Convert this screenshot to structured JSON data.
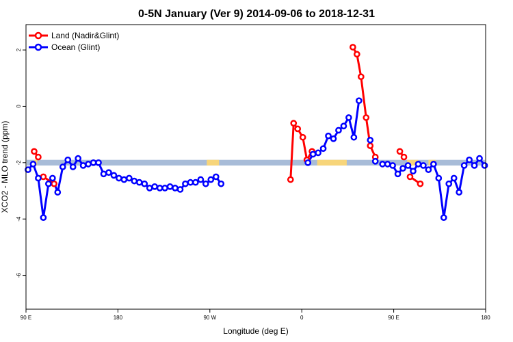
{
  "chart_data": {
    "type": "line",
    "title": "0-5N January (Ver 9)   2014-09-06 to 2018-12-31",
    "xlabel": "Longitude (deg E)",
    "ylabel": "XCO2 - MLO trend (ppm)",
    "xlim": [
      90,
      540
    ],
    "ylim": [
      -7.2,
      2.9
    ],
    "x_ticks": [
      {
        "value": 90,
        "label": "90 E"
      },
      {
        "value": 180,
        "label": "180"
      },
      {
        "value": 270,
        "label": "90 W"
      },
      {
        "value": 360,
        "label": "0"
      },
      {
        "value": 450,
        "label": "90 E"
      },
      {
        "value": 540,
        "label": "180"
      }
    ],
    "y_ticks": [
      {
        "value": 2,
        "label": "2"
      },
      {
        "value": 0,
        "label": "0"
      },
      {
        "value": -2,
        "label": "-2"
      },
      {
        "value": -4,
        "label": "-4"
      },
      {
        "value": -6,
        "label": "-6"
      }
    ],
    "legend_position": "top-left",
    "band": {
      "y_from": -2.1,
      "y_to": -1.9,
      "ocean_color": "#a8bcd8",
      "land_color": "#f7d57a",
      "land_ranges": [
        [
          98,
          101
        ],
        [
          267,
          279
        ],
        [
          375,
          404
        ],
        [
          463,
          474
        ],
        [
          484,
          491
        ]
      ]
    },
    "series": [
      {
        "name": "Land (Nadir&Glint)",
        "color": "#ff0000",
        "segments": [
          [
            [
              98,
              -1.6
            ],
            [
              102,
              -1.8
            ]
          ],
          [
            [
              107,
              -2.5
            ],
            [
              117.5,
              -2.75
            ]
          ],
          [
            [
              349,
              -2.6
            ],
            [
              352,
              -0.6
            ],
            [
              356,
              -0.8
            ],
            [
              361,
              -1.1
            ],
            [
              365,
              -1.9
            ],
            [
              370,
              -1.6
            ]
          ],
          [
            [
              410,
              2.1
            ],
            [
              414,
              1.85
            ],
            [
              418,
              1.05
            ],
            [
              423,
              -0.4
            ],
            [
              427,
              -1.4
            ],
            [
              432,
              -1.8
            ]
          ],
          [
            [
              456,
              -1.6
            ],
            [
              460,
              -1.8
            ]
          ],
          [
            [
              466,
              -2.5
            ],
            [
              476,
              -2.75
            ]
          ]
        ]
      },
      {
        "name": "Ocean (Glint)",
        "color": "#0000ff",
        "points": [
          [
            92,
            -2.25
          ],
          [
            97,
            -2.05
          ],
          [
            102,
            -2.55
          ],
          [
            107,
            -3.95
          ],
          [
            112,
            -2.75
          ],
          [
            116,
            -2.55
          ],
          [
            121,
            -3.05
          ],
          [
            126,
            -2.15
          ],
          [
            131,
            -1.9
          ],
          [
            136,
            -2.15
          ],
          [
            141,
            -1.85
          ],
          [
            146,
            -2.1
          ],
          [
            151,
            -2.05
          ],
          [
            156,
            -2.0
          ],
          [
            161,
            -2.0
          ],
          [
            166,
            -2.4
          ],
          [
            171,
            -2.35
          ],
          [
            176,
            -2.45
          ],
          [
            181,
            -2.55
          ],
          [
            186,
            -2.6
          ],
          [
            191,
            -2.55
          ],
          [
            196,
            -2.65
          ],
          [
            201,
            -2.7
          ],
          [
            206,
            -2.75
          ],
          [
            211,
            -2.9
          ],
          [
            216,
            -2.85
          ],
          [
            221,
            -2.9
          ],
          [
            226,
            -2.9
          ],
          [
            231,
            -2.85
          ],
          [
            236,
            -2.9
          ],
          [
            241,
            -2.95
          ],
          [
            246,
            -2.75
          ],
          [
            251,
            -2.7
          ],
          [
            256,
            -2.7
          ],
          [
            261,
            -2.6
          ],
          [
            266,
            -2.75
          ],
          [
            271,
            -2.6
          ],
          [
            276,
            -2.5
          ],
          [
            281,
            -2.75
          ],
          [
            366,
            -2.0
          ],
          [
            371,
            -1.7
          ],
          [
            376,
            -1.65
          ],
          [
            381,
            -1.5
          ],
          [
            386,
            -1.05
          ],
          [
            391,
            -1.15
          ],
          [
            396,
            -0.85
          ],
          [
            401,
            -0.7
          ],
          [
            406,
            -0.4
          ],
          [
            411,
            -1.1
          ],
          [
            416,
            0.2
          ],
          [
            439,
            -2.05
          ],
          [
            444,
            -2.05
          ],
          [
            449,
            -2.1
          ],
          [
            454,
            -2.4
          ],
          [
            459,
            -2.2
          ],
          [
            464,
            -2.1
          ],
          [
            469,
            -2.3
          ],
          [
            474,
            -2.05
          ],
          [
            479,
            -2.1
          ],
          [
            484,
            -2.25
          ],
          [
            489,
            -2.05
          ],
          [
            494,
            -2.55
          ],
          [
            499,
            -3.95
          ],
          [
            504,
            -2.75
          ],
          [
            509,
            -2.55
          ],
          [
            514,
            -3.05
          ],
          [
            519,
            -2.1
          ],
          [
            524,
            -1.9
          ],
          [
            529,
            -2.1
          ],
          [
            534,
            -1.85
          ],
          [
            539,
            -2.1
          ]
        ],
        "extra_points": [
          [
            427,
            -1.2
          ],
          [
            432,
            -1.95
          ]
        ]
      }
    ]
  }
}
